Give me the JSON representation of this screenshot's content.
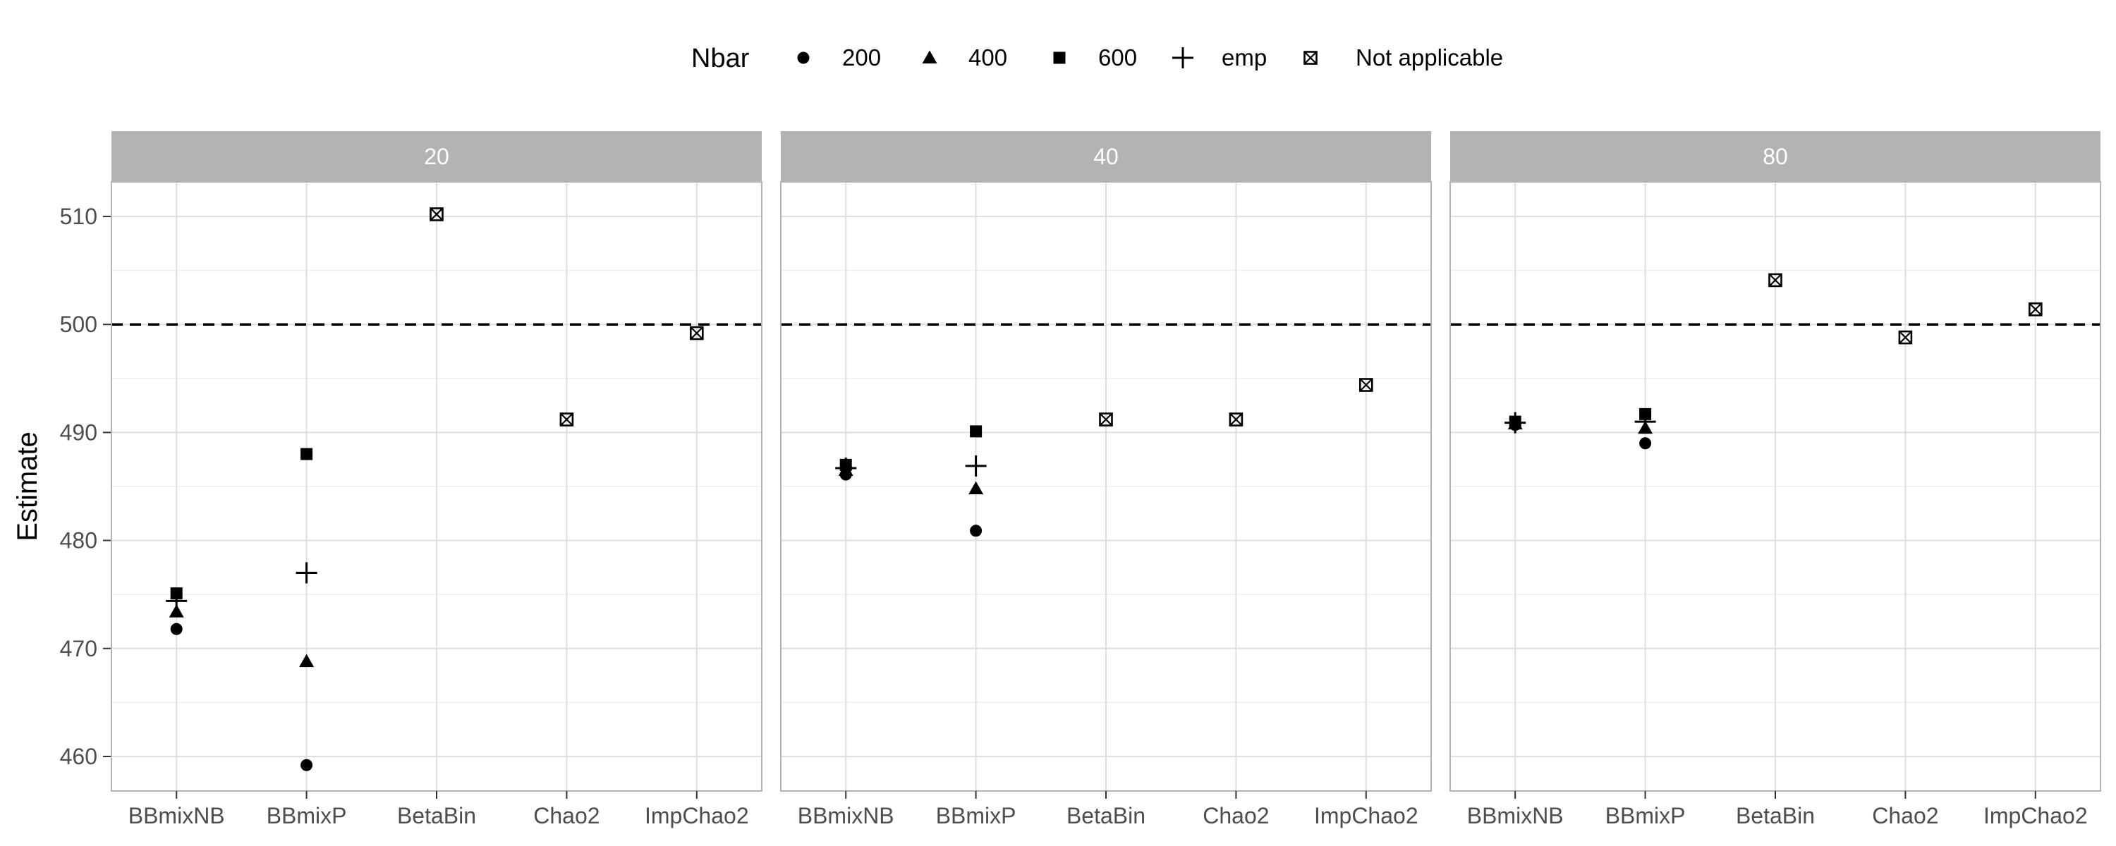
{
  "chart_data": {
    "type": "scatter",
    "title": "",
    "xlabel": "",
    "ylabel": "Estimate",
    "ylim": [
      456.8,
      513.2
    ],
    "yticks": [
      460,
      470,
      480,
      490,
      500,
      510
    ],
    "grid": true,
    "legend_position": "top",
    "reference_line": {
      "y": 500,
      "style": "dashed"
    },
    "categories": [
      "BBmixNB",
      "BBmixP",
      "BetaBin",
      "Chao2",
      "ImpChao2"
    ],
    "legend": {
      "title": "Nbar",
      "entries": [
        {
          "key": "200",
          "label": "200",
          "shape": "circle"
        },
        {
          "key": "400",
          "label": "400",
          "shape": "triangle"
        },
        {
          "key": "600",
          "label": "600",
          "shape": "square"
        },
        {
          "key": "emp",
          "label": "emp",
          "shape": "plus"
        },
        {
          "key": "na",
          "label": "Not applicable",
          "shape": "boxed-x"
        }
      ]
    },
    "panels": [
      {
        "label": "20",
        "points": [
          {
            "category": "BBmixNB",
            "series": "200",
            "y": 471.8
          },
          {
            "category": "BBmixNB",
            "series": "400",
            "y": 473.4
          },
          {
            "category": "BBmixNB",
            "series": "600",
            "y": 475.1
          },
          {
            "category": "BBmixNB",
            "series": "emp",
            "y": 474.4
          },
          {
            "category": "BBmixP",
            "series": "200",
            "y": 459.2
          },
          {
            "category": "BBmixP",
            "series": "400",
            "y": 468.8
          },
          {
            "category": "BBmixP",
            "series": "600",
            "y": 488.0
          },
          {
            "category": "BBmixP",
            "series": "emp",
            "y": 477.0
          },
          {
            "category": "BetaBin",
            "series": "na",
            "y": 510.2
          },
          {
            "category": "Chao2",
            "series": "na",
            "y": 491.2
          },
          {
            "category": "ImpChao2",
            "series": "na",
            "y": 499.2
          }
        ]
      },
      {
        "label": "40",
        "points": [
          {
            "category": "BBmixNB",
            "series": "200",
            "y": 486.1
          },
          {
            "category": "BBmixNB",
            "series": "400",
            "y": 486.5
          },
          {
            "category": "BBmixNB",
            "series": "600",
            "y": 487.0
          },
          {
            "category": "BBmixNB",
            "series": "emp",
            "y": 486.7
          },
          {
            "category": "BBmixP",
            "series": "200",
            "y": 480.9
          },
          {
            "category": "BBmixP",
            "series": "400",
            "y": 484.8
          },
          {
            "category": "BBmixP",
            "series": "600",
            "y": 490.1
          },
          {
            "category": "BBmixP",
            "series": "emp",
            "y": 486.9
          },
          {
            "category": "BetaBin",
            "series": "na",
            "y": 491.2
          },
          {
            "category": "Chao2",
            "series": "na",
            "y": 491.2
          },
          {
            "category": "ImpChao2",
            "series": "na",
            "y": 494.4
          }
        ]
      },
      {
        "label": "80",
        "points": [
          {
            "category": "BBmixNB",
            "series": "200",
            "y": 490.7
          },
          {
            "category": "BBmixNB",
            "series": "400",
            "y": 490.8
          },
          {
            "category": "BBmixNB",
            "series": "600",
            "y": 491.0
          },
          {
            "category": "BBmixNB",
            "series": "emp",
            "y": 490.9
          },
          {
            "category": "BBmixP",
            "series": "200",
            "y": 489.0
          },
          {
            "category": "BBmixP",
            "series": "400",
            "y": 490.4
          },
          {
            "category": "BBmixP",
            "series": "600",
            "y": 491.7
          },
          {
            "category": "BBmixP",
            "series": "emp",
            "y": 491.0
          },
          {
            "category": "BetaBin",
            "series": "na",
            "y": 504.1
          },
          {
            "category": "Chao2",
            "series": "na",
            "y": 498.8
          },
          {
            "category": "ImpChao2",
            "series": "na",
            "y": 501.4
          }
        ]
      }
    ],
    "colors": {
      "strip_fill": "#b3b3b3",
      "strip_text": "#ffffff",
      "panel_border": "#b3b3b3",
      "grid_major": "#dedede",
      "grid_minor": "#efefef",
      "marks": "#000000",
      "axis_text": "#4d4d4d"
    }
  }
}
